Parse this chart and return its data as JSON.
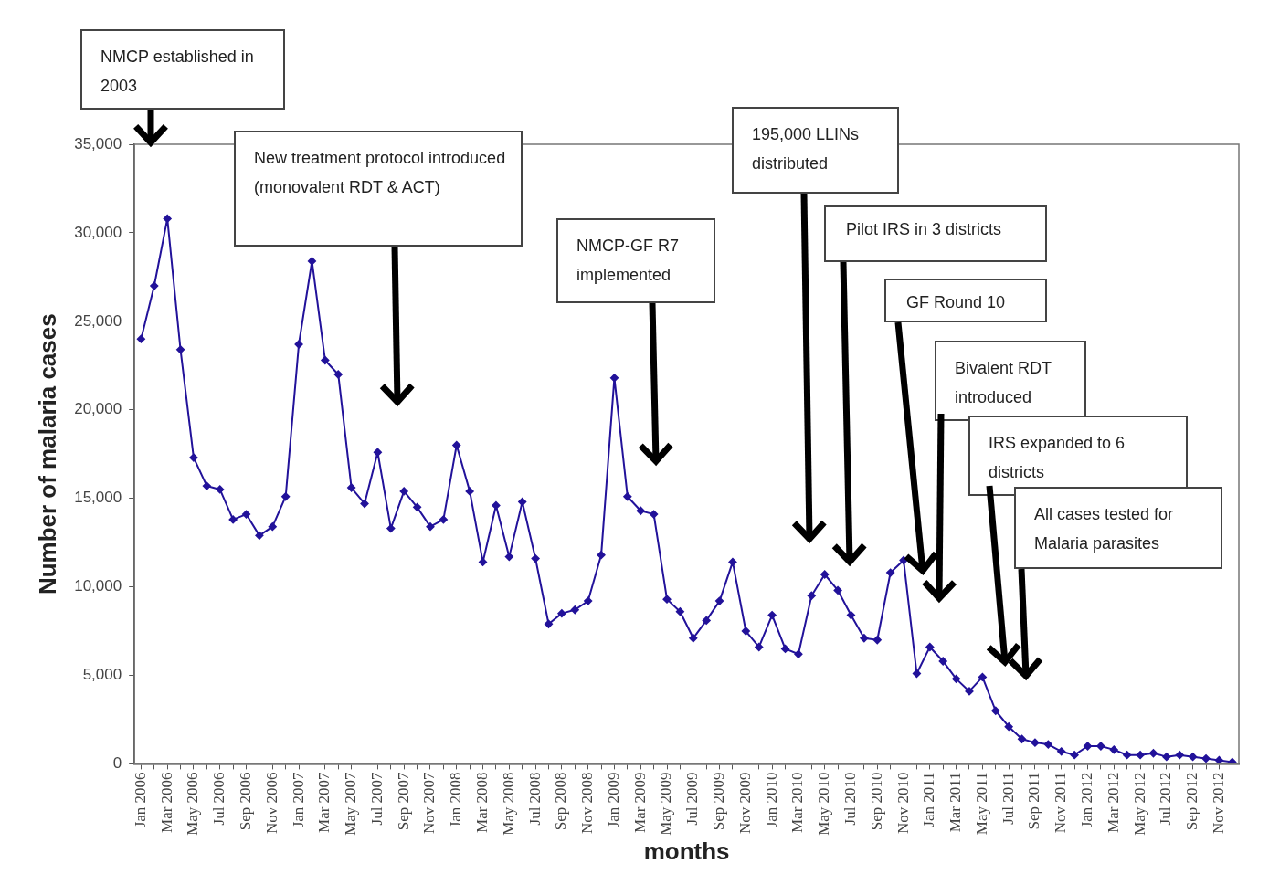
{
  "chart_data": {
    "type": "line",
    "xlabel": "months",
    "ylabel": "Number of malaria cases",
    "categories": [
      "Jan 2006",
      null,
      "Mar 2006",
      null,
      "May 2006",
      null,
      "Jul 2006",
      null,
      "Sep 2006",
      null,
      "Nov 2006",
      null,
      "Jan 2007",
      null,
      "Mar 2007",
      null,
      "May 2007",
      null,
      "Jul 2007",
      null,
      "Sep 2007",
      null,
      "Nov 2007",
      null,
      "Jan 2008",
      null,
      "Mar 2008",
      null,
      "May 2008",
      null,
      "Jul 2008",
      null,
      "Sep 2008",
      null,
      "Nov 2008",
      null,
      "Jan 2009",
      null,
      "Mar 2009",
      null,
      "May 2009",
      null,
      "Jul 2009",
      null,
      "Sep 2009",
      null,
      "Nov 2009",
      null,
      "Jan 2010",
      null,
      "Mar 2010",
      null,
      "May 2010",
      null,
      "Jul 2010",
      null,
      "Sep 2010",
      null,
      "Nov 2010",
      null,
      "Jan 2011",
      null,
      "Mar 2011",
      null,
      "May 2011",
      null,
      "Jul 2011",
      null,
      "Sep 2011",
      null,
      "Nov 2011",
      null,
      "Jan 2012",
      null,
      "Mar 2012",
      null,
      "May 2012",
      null,
      "Jul 2012",
      null,
      "Sep 2012",
      null,
      "Nov 2012",
      null
    ],
    "series": [
      {
        "color": "#22129a",
        "values": [
          24000,
          27000,
          30800,
          23400,
          17300,
          15700,
          15500,
          13800,
          14100,
          12900,
          13400,
          15100,
          23700,
          28400,
          22800,
          22000,
          15600,
          14700,
          17600,
          13300,
          15400,
          14500,
          13400,
          13800,
          18000,
          15400,
          11400,
          14600,
          11700,
          14800,
          11600,
          7900,
          8500,
          8700,
          9200,
          11800,
          21800,
          15100,
          14300,
          14100,
          9300,
          8600,
          7100,
          8100,
          9200,
          11400,
          7500,
          6600,
          8400,
          6500,
          6200,
          9500,
          10700,
          9800,
          8400,
          7100,
          7000,
          10800,
          11500,
          5100,
          6600,
          5800,
          4800,
          4100,
          4900,
          3000,
          2100,
          1400,
          1200,
          1100,
          700,
          500,
          1000,
          1000,
          800,
          500,
          500,
          600,
          400,
          500,
          400,
          300,
          200,
          100
        ]
      }
    ],
    "ylim": [
      0,
      35000
    ],
    "yticks": [
      0,
      {
        "value": 5000,
        "label": "5,000"
      },
      {
        "value": 10000,
        "label": "10,000"
      },
      {
        "value": 15000,
        "label": "15,000"
      },
      {
        "value": 20000,
        "label": "20,000"
      },
      {
        "value": 25000,
        "label": "25,000"
      },
      {
        "value": 30000,
        "label": "30,000"
      },
      {
        "value": 35000,
        "label": "35,000"
      }
    ],
    "grid": false,
    "legend": false,
    "marker": "diamond",
    "line_style": "solid",
    "annotations": [
      "NMCP established in 2003",
      "New treatment protocol introduced (monovalent RDT & ACT)",
      "NMCP-GF R7 implemented",
      "195,000 LLINs distributed",
      "Pilot IRS in 3 districts",
      "GF Round 10",
      "Bivalent RDT introduced",
      "IRS expanded to 6 districts",
      "All cases tested for Malaria parasites"
    ]
  }
}
